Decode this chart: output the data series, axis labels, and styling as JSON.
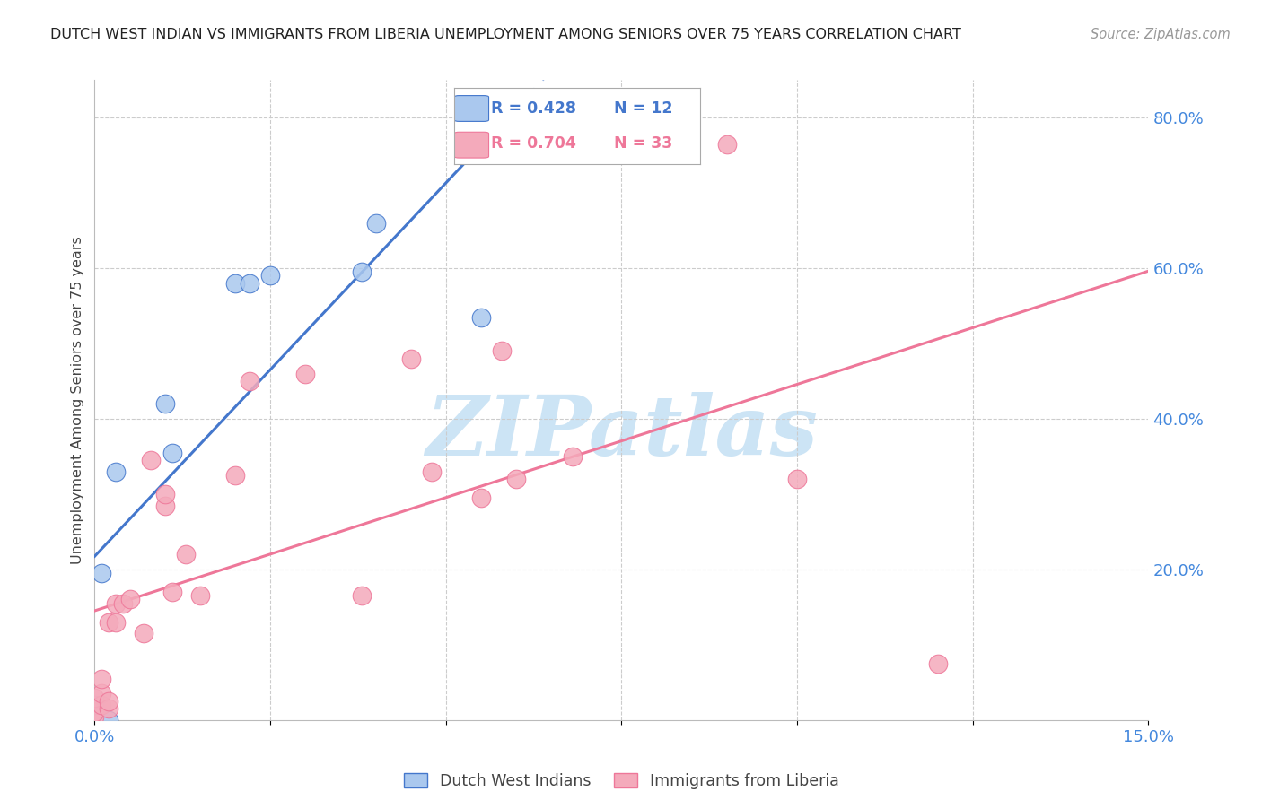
{
  "title": "DUTCH WEST INDIAN VS IMMIGRANTS FROM LIBERIA UNEMPLOYMENT AMONG SENIORS OVER 75 YEARS CORRELATION CHART",
  "source": "Source: ZipAtlas.com",
  "ylabel_left": "Unemployment Among Seniors over 75 years",
  "x_min": 0.0,
  "x_max": 0.15,
  "y_min": 0.0,
  "y_max": 0.85,
  "right_yticklabels": [
    "20.0%",
    "40.0%",
    "60.0%",
    "80.0%"
  ],
  "right_yticks": [
    0.2,
    0.4,
    0.6,
    0.8
  ],
  "title_color": "#222222",
  "source_color": "#999999",
  "axis_label_color": "#444444",
  "tick_label_color": "#4488dd",
  "grid_color": "#cccccc",
  "background_color": "#ffffff",
  "watermark_text": "ZIPatlas",
  "watermark_color": "#cce4f5",
  "legend_R1": "R = 0.428",
  "legend_N1": "N = 12",
  "legend_R2": "R = 0.704",
  "legend_N2": "N = 33",
  "legend_label1": "Dutch West Indians",
  "legend_label2": "Immigrants from Liberia",
  "color_blue": "#aac8ee",
  "color_pink": "#f4aabb",
  "trend_color_blue": "#4477cc",
  "trend_color_pink": "#ee7799",
  "dutch_x": [
    0.0,
    0.001,
    0.002,
    0.003,
    0.01,
    0.011,
    0.02,
    0.022,
    0.025,
    0.038,
    0.04,
    0.055
  ],
  "dutch_y": [
    0.02,
    0.195,
    0.0,
    0.33,
    0.42,
    0.355,
    0.58,
    0.58,
    0.59,
    0.595,
    0.66,
    0.535
  ],
  "liberia_x": [
    0.0,
    0.0,
    0.0,
    0.001,
    0.001,
    0.001,
    0.002,
    0.002,
    0.002,
    0.003,
    0.003,
    0.004,
    0.005,
    0.007,
    0.008,
    0.01,
    0.01,
    0.011,
    0.013,
    0.015,
    0.02,
    0.022,
    0.03,
    0.038,
    0.045,
    0.048,
    0.055,
    0.058,
    0.06,
    0.068,
    0.09,
    0.1,
    0.12
  ],
  "liberia_y": [
    0.005,
    0.01,
    0.03,
    0.02,
    0.035,
    0.055,
    0.015,
    0.025,
    0.13,
    0.13,
    0.155,
    0.155,
    0.16,
    0.115,
    0.345,
    0.285,
    0.3,
    0.17,
    0.22,
    0.165,
    0.325,
    0.45,
    0.46,
    0.165,
    0.48,
    0.33,
    0.295,
    0.49,
    0.32,
    0.35,
    0.765,
    0.32,
    0.075
  ]
}
